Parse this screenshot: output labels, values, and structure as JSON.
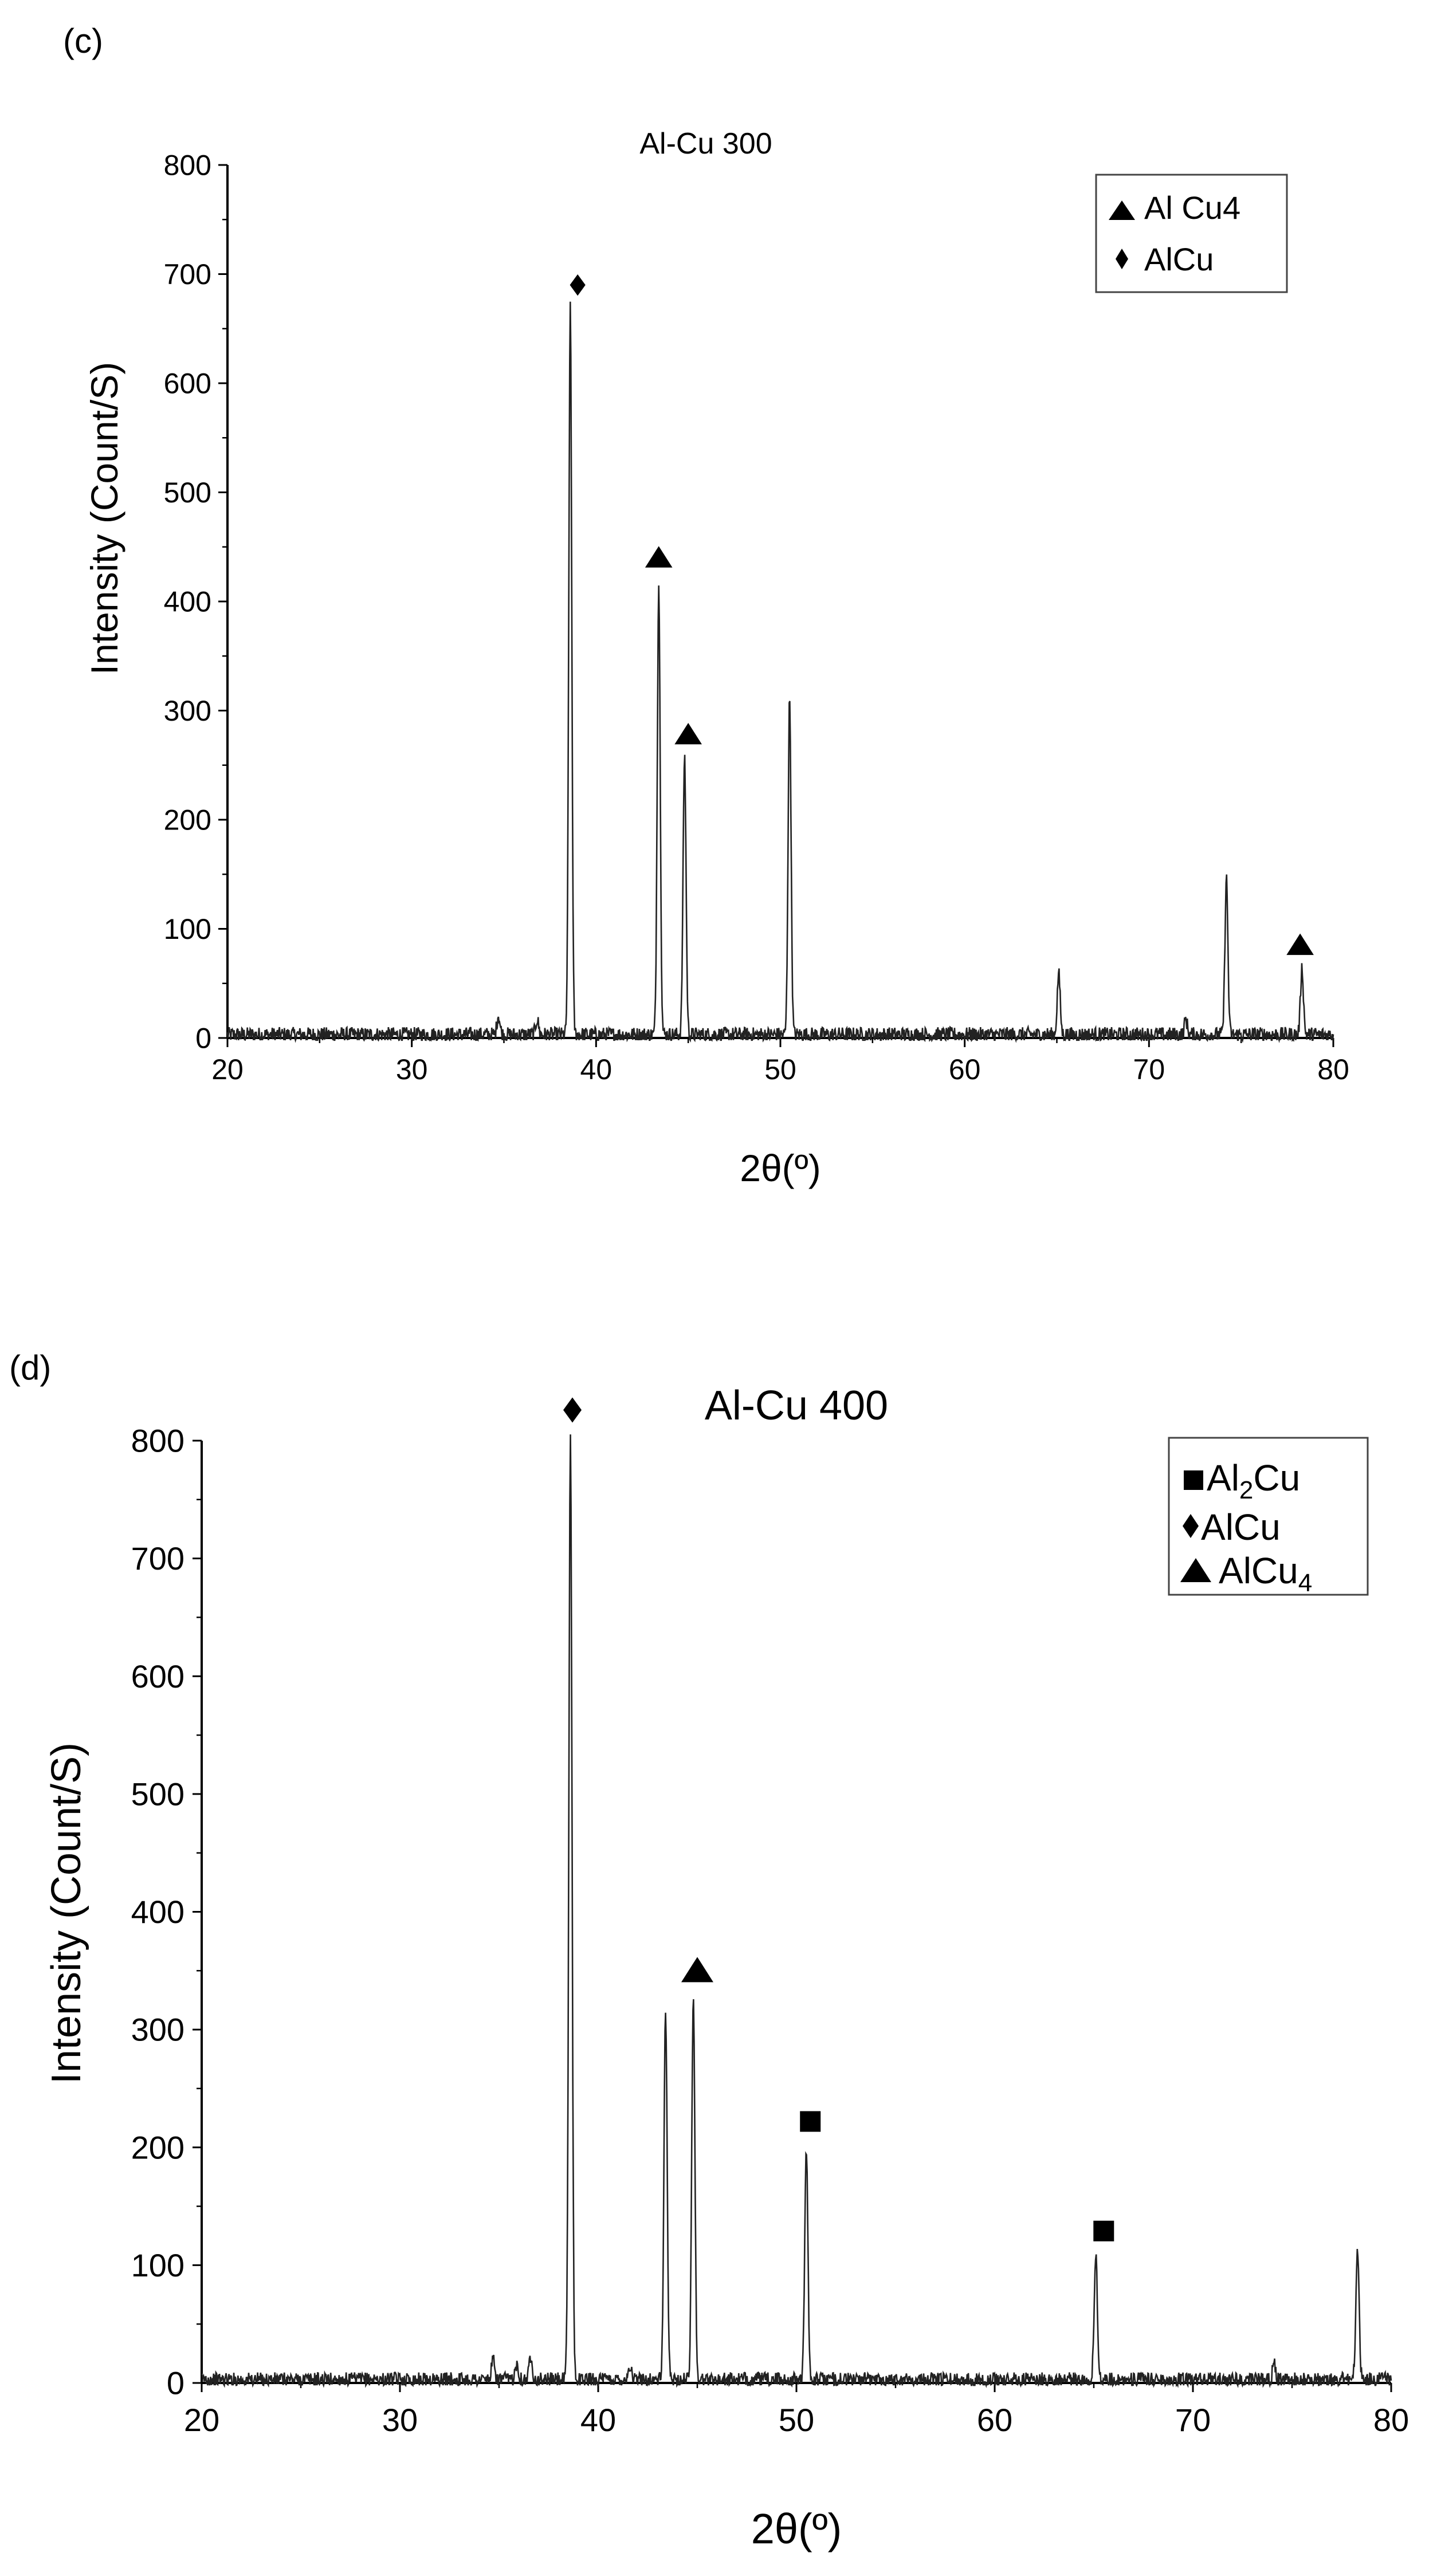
{
  "chart_data": [
    {
      "type": "line",
      "panel_label": "(c)",
      "title": "Al-Cu 300",
      "xlabel": "2θ(º)",
      "ylabel": "Intensity (Count/S)",
      "xlim": [
        20,
        80
      ],
      "ylim": [
        0,
        800
      ],
      "x_ticks": [
        20,
        30,
        40,
        50,
        60,
        70,
        80
      ],
      "y_ticks": [
        0,
        100,
        200,
        300,
        400,
        500,
        600,
        700,
        800
      ],
      "grid": false,
      "legend_position": "top-right",
      "legend": [
        {
          "marker": "triangle",
          "label": "Al Cu4"
        },
        {
          "marker": "diamond",
          "label": "AlCu"
        }
      ],
      "series": [
        {
          "peaks": [
            {
              "x": 34.7,
              "y": 18
            },
            {
              "x": 36.8,
              "y": 14
            },
            {
              "x": 38.6,
              "y": 665
            },
            {
              "x": 43.4,
              "y": 412
            },
            {
              "x": 44.8,
              "y": 255
            },
            {
              "x": 50.5,
              "y": 308
            },
            {
              "x": 65.1,
              "y": 56
            },
            {
              "x": 72.0,
              "y": 14
            },
            {
              "x": 74.2,
              "y": 143
            },
            {
              "x": 78.3,
              "y": 61
            }
          ],
          "noise_level": 7,
          "baseline": 3
        }
      ],
      "annotations": [
        {
          "marker": "diamond",
          "x": 39.0,
          "y": 690
        },
        {
          "marker": "triangle",
          "x": 43.4,
          "y": 440
        },
        {
          "marker": "triangle",
          "x": 45.0,
          "y": 278
        },
        {
          "marker": "triangle",
          "x": 78.2,
          "y": 85
        }
      ]
    },
    {
      "type": "line",
      "panel_label": "(d)",
      "title": "Al-Cu 400",
      "xlabel": "2θ(º)",
      "ylabel": "Intensity (Count/S)",
      "xlim": [
        20,
        80
      ],
      "ylim": [
        0,
        800
      ],
      "x_ticks": [
        20,
        30,
        40,
        50,
        60,
        70,
        80
      ],
      "y_ticks": [
        0,
        100,
        200,
        300,
        400,
        500,
        600,
        700,
        800
      ],
      "grid": false,
      "legend_position": "top-right",
      "legend": [
        {
          "marker": "square",
          "label": "Al",
          "sub": "2",
          "label_after": "Cu"
        },
        {
          "marker": "diamond",
          "label": "AlCu",
          "sub": "",
          "label_after": ""
        },
        {
          "marker": "triangle",
          "label": "AlCu",
          "sub": "4",
          "label_after": ""
        }
      ],
      "series": [
        {
          "peaks": [
            {
              "x": 34.7,
              "y": 16
            },
            {
              "x": 35.9,
              "y": 14
            },
            {
              "x": 36.6,
              "y": 20
            },
            {
              "x": 38.6,
              "y": 800
            },
            {
              "x": 41.6,
              "y": 12
            },
            {
              "x": 43.4,
              "y": 315
            },
            {
              "x": 44.8,
              "y": 325
            },
            {
              "x": 50.5,
              "y": 193
            },
            {
              "x": 65.1,
              "y": 105
            },
            {
              "x": 74.1,
              "y": 14
            },
            {
              "x": 78.3,
              "y": 112
            }
          ],
          "noise_level": 6,
          "baseline": 3
        }
      ],
      "annotations": [
        {
          "marker": "diamond",
          "x": 38.7,
          "y": 826
        },
        {
          "marker": "triangle",
          "x": 45.0,
          "y": 350
        },
        {
          "marker": "square",
          "x": 50.7,
          "y": 222
        },
        {
          "marker": "square",
          "x": 65.5,
          "y": 129
        }
      ]
    }
  ]
}
